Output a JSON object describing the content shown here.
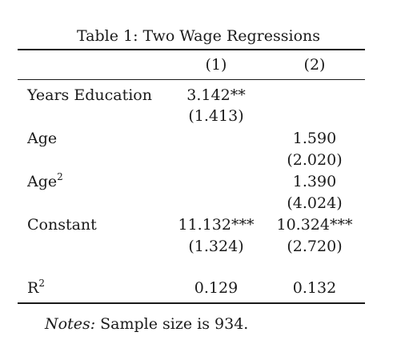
{
  "table": {
    "caption": "Table 1: Two Wage Regressions",
    "columns": [
      "(1)",
      "(2)"
    ],
    "rows": [
      {
        "label": "Years Education",
        "label_sup": "",
        "c1": "3.142**",
        "c1_se": "(1.413)",
        "c2": "",
        "c2_se": ""
      },
      {
        "label": "Age",
        "label_sup": "",
        "c1": "",
        "c1_se": "",
        "c2": "1.590",
        "c2_se": "(2.020)"
      },
      {
        "label": "Age",
        "label_sup": "2",
        "c1": "",
        "c1_se": "",
        "c2": "1.390",
        "c2_se": "(4.024)"
      },
      {
        "label": "Constant",
        "label_sup": "",
        "c1": "11.132***",
        "c1_se": "(1.324)",
        "c2": "10.324***",
        "c2_se": "(2.720)"
      }
    ],
    "r2": {
      "label": "R",
      "label_sup": "2",
      "c1": "0.129",
      "c2": "0.132"
    },
    "notes": {
      "prefix": "Notes:",
      "text": " Sample size is 934."
    }
  }
}
